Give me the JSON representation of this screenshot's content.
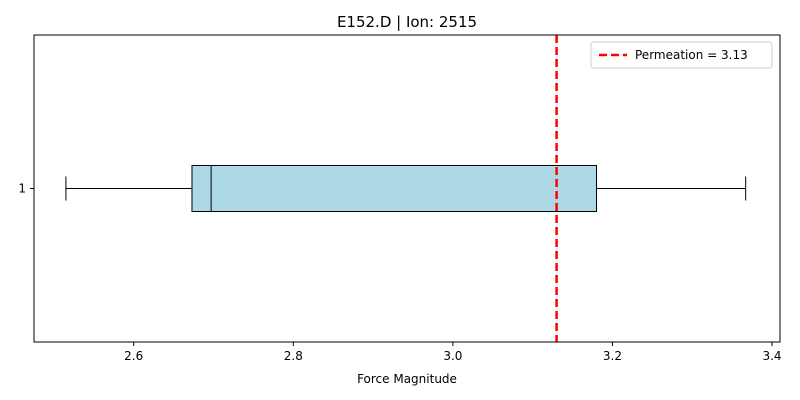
{
  "chart_data": {
    "type": "boxplot",
    "orientation": "horizontal",
    "title": "E152.D | Ion: 2515",
    "xlabel": "Force Magnitude",
    "ylabel": "",
    "xlim": [
      2.475,
      3.41
    ],
    "ylim": [
      0.5,
      1.5
    ],
    "x_ticks": [
      2.6,
      2.8,
      3.0,
      3.2,
      3.4
    ],
    "x_tick_labels": [
      "2.6",
      "2.8",
      "3.0",
      "3.2",
      "3.4"
    ],
    "y_ticks": [
      1
    ],
    "y_tick_labels": [
      "1"
    ],
    "grid": false,
    "legend_position": "top-right",
    "boxes": [
      {
        "position": 1,
        "whisker_low": 2.515,
        "q1": 2.673,
        "median": 2.697,
        "q3": 3.18,
        "whisker_high": 3.367
      }
    ],
    "reference_line": {
      "label": "Permeation = 3.13",
      "value": 3.13,
      "color": "#ff0000",
      "style": "dashed"
    },
    "colors": {
      "box_fill": "#add8e6",
      "box_edge": "#000000"
    }
  }
}
